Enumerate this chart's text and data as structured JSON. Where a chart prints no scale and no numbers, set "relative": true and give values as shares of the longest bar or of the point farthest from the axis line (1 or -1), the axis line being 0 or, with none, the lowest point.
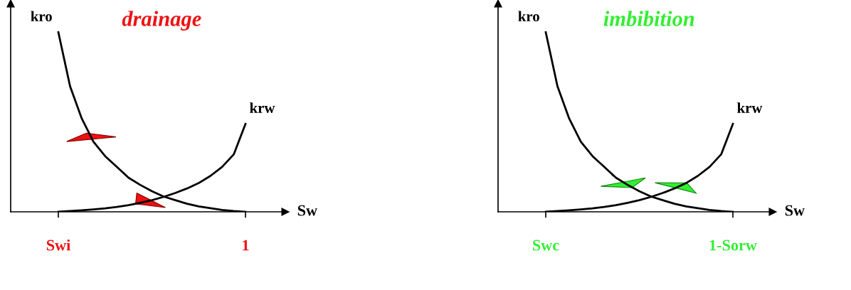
{
  "chart_data": [
    {
      "type": "line",
      "title": "drainage",
      "xlabel": "Sw",
      "relative": true,
      "categories": [
        "Swi",
        null,
        null,
        null,
        null,
        null,
        null,
        null,
        null,
        null,
        null,
        null,
        null,
        null,
        null,
        null,
        "1"
      ],
      "tick_labels": "x",
      "grid": false,
      "legend": false,
      "marker": "none",
      "line_style": "solid",
      "series": [
        {
          "name": "kro",
          "color": "#000000",
          "values": [
            1,
            0.7,
            0.52,
            0.39,
            0.31,
            0.25,
            0.19,
            0.15,
            0.115,
            0.085,
            0.065,
            0.045,
            0.03,
            0.02,
            0.01,
            0.004,
            0
          ]
        },
        {
          "name": "krw",
          "color": "#000000",
          "values": [
            0,
            0.004,
            0.008,
            0.013,
            0.019,
            0.027,
            0.037,
            0.05,
            0.065,
            0.083,
            0.105,
            0.13,
            0.16,
            0.2,
            0.25,
            0.32,
            0.49
          ]
        }
      ]
    },
    {
      "type": "line",
      "title": "imbibition",
      "xlabel": "Sw",
      "relative": true,
      "categories": [
        "Swc",
        null,
        null,
        null,
        null,
        null,
        null,
        null,
        null,
        null,
        null,
        null,
        null,
        null,
        null,
        null,
        "1-Sorw"
      ],
      "tick_labels": "x",
      "grid": false,
      "legend": false,
      "marker": "none",
      "line_style": "solid",
      "series": [
        {
          "name": "kro",
          "color": "#000000",
          "values": [
            1,
            0.7,
            0.52,
            0.39,
            0.31,
            0.25,
            0.19,
            0.15,
            0.115,
            0.085,
            0.065,
            0.045,
            0.03,
            0.02,
            0.01,
            0.004,
            0
          ]
        },
        {
          "name": "krw",
          "color": "#000000",
          "values": [
            0,
            0.004,
            0.008,
            0.013,
            0.019,
            0.027,
            0.037,
            0.05,
            0.065,
            0.083,
            0.105,
            0.13,
            0.16,
            0.2,
            0.25,
            0.32,
            0.49
          ]
        }
      ]
    }
  ]
}
